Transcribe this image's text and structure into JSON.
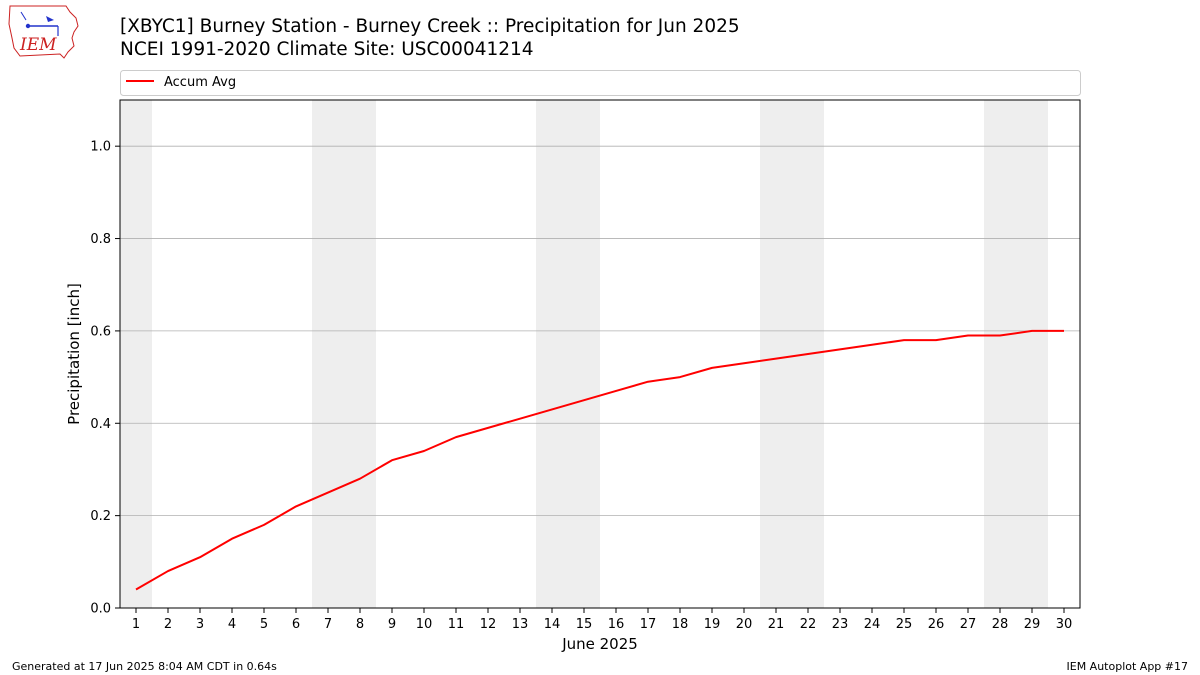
{
  "header": {
    "title_line1": "[XBYC1] Burney Station - Burney Creek :: Precipitation for Jun 2025",
    "title_line2": "NCEI 1991-2020 Climate Site: USC00041214",
    "logo_text": "IEM"
  },
  "footer": {
    "generated": "Generated at 17 Jun 2025 8:04 AM CDT in 0.64s",
    "app": "IEM Autoplot App #17"
  },
  "colors": {
    "line": "#ff0000",
    "weekend_band": "#eeeeee",
    "grid": "#b0b0b0",
    "logo": "#cc2222"
  },
  "chart_data": {
    "type": "line",
    "xlabel": "June 2025",
    "ylabel": "Precipitation [inch]",
    "xlim": [
      0.5,
      30.5
    ],
    "ylim": [
      0,
      1.1
    ],
    "x_ticks": [
      1,
      2,
      3,
      4,
      5,
      6,
      7,
      8,
      9,
      10,
      11,
      12,
      13,
      14,
      15,
      16,
      17,
      18,
      19,
      20,
      21,
      22,
      23,
      24,
      25,
      26,
      27,
      28,
      29,
      30
    ],
    "y_ticks": [
      0.0,
      0.2,
      0.4,
      0.6,
      0.8,
      1.0
    ],
    "y_tick_labels": [
      "0.0",
      "0.2",
      "0.4",
      "0.6",
      "0.8",
      "1.0"
    ],
    "grid": "horizontal",
    "legend_position": "top, above plot",
    "weekend_days": [
      1,
      7,
      8,
      14,
      15,
      21,
      22,
      28,
      29
    ],
    "series": [
      {
        "name": "Accum Avg",
        "color": "#ff0000",
        "x": [
          1,
          2,
          3,
          4,
          5,
          6,
          7,
          8,
          9,
          10,
          11,
          12,
          13,
          14,
          15,
          16,
          17,
          18,
          19,
          20,
          21,
          22,
          23,
          24,
          25,
          26,
          27,
          28,
          29,
          30
        ],
        "values": [
          0.04,
          0.08,
          0.11,
          0.15,
          0.18,
          0.22,
          0.25,
          0.28,
          0.32,
          0.34,
          0.37,
          0.39,
          0.41,
          0.43,
          0.45,
          0.47,
          0.49,
          0.5,
          0.52,
          0.53,
          0.54,
          0.55,
          0.56,
          0.57,
          0.58,
          0.58,
          0.59,
          0.59,
          0.6,
          0.6
        ]
      }
    ]
  }
}
